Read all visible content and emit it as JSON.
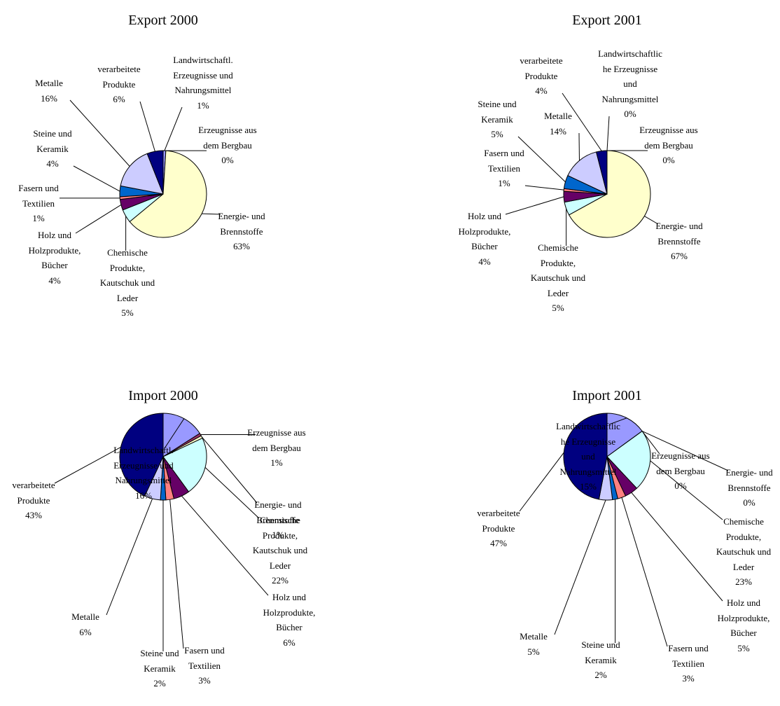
{
  "chart_data": [
    {
      "type": "pie",
      "title": "Export 2000",
      "categories": [
        "Landwirtschaftl. Erzeugnisse und Nahrungsmittel",
        "Erzeugnisse aus dem Bergbau",
        "Energie- und Brennstoffe",
        "Chemische Produkte, Kautschuk und Leder",
        "Holz und Holzprodukte, Bücher",
        "Fasern und Textilien",
        "Steine und Keramik",
        "Metalle",
        "verarbeitete Produkte"
      ],
      "values": [
        1,
        0,
        63,
        5,
        4,
        1,
        4,
        16,
        6
      ],
      "value_labels": [
        "1%",
        "0%",
        "63%",
        "5%",
        "4%",
        "1%",
        "4%",
        "16%",
        "6%"
      ],
      "colors": [
        "#9999FF",
        "#993366",
        "#FFFFCC",
        "#CCFFFF",
        "#660066",
        "#FF8080",
        "#0066CC",
        "#CCCCFF",
        "#000080"
      ]
    },
    {
      "type": "pie",
      "title": "Export 2001",
      "categories": [
        "Landwirtschaftliche Erzeugnisse und Nahrungsmittel",
        "Erzeugnisse aus dem Bergbau",
        "Energie- und Brennstoffe",
        "Chemische Produkte, Kautschuk und Leder",
        "Holz und Holzprodukte, Bücher",
        "Fasern und Textilien",
        "Steine und Keramik",
        "Metalle",
        "verarbeitete Produkte"
      ],
      "values": [
        0,
        0,
        67,
        5,
        4,
        1,
        5,
        14,
        4
      ],
      "value_labels": [
        "0%",
        "0%",
        "67%",
        "5%",
        "4%",
        "1%",
        "5%",
        "14%",
        "4%"
      ],
      "colors": [
        "#9999FF",
        "#993366",
        "#FFFFCC",
        "#CCFFFF",
        "#660066",
        "#FF8080",
        "#0066CC",
        "#CCCCFF",
        "#000080"
      ]
    },
    {
      "type": "pie",
      "title": "Import 2000",
      "categories": [
        "Landwirtschaftl. Erzeugnisse und Nahrungsmittel",
        "Erzeugnisse aus dem Bergbau",
        "Energie- und Brennstoffe",
        "Chemische Produkte, Kautschuk und Leder",
        "Holz und Holzprodukte, Bücher",
        "Fasern und Textilien",
        "Steine und Keramik",
        "Metalle",
        "verarbeitete Produkte"
      ],
      "values": [
        16,
        1,
        1,
        22,
        6,
        3,
        2,
        6,
        43
      ],
      "value_labels": [
        "16%",
        "1%",
        "1%",
        "22%",
        "6%",
        "3%",
        "2%",
        "6%",
        "43%"
      ],
      "colors": [
        "#9999FF",
        "#993366",
        "#FFFFCC",
        "#CCFFFF",
        "#660066",
        "#FF8080",
        "#0066CC",
        "#CCCCFF",
        "#000080"
      ]
    },
    {
      "type": "pie",
      "title": "Import 2001",
      "categories": [
        "Landwirtschaftliche Erzeugnisse und Nahrungsmittel",
        "Erzeugnisse aus dem Bergbau",
        "Energie- und Brennstoffe",
        "Chemische Produkte, Kautschuk und Leder",
        "Holz und Holzprodukte, Bücher",
        "Fasern und Textilien",
        "Steine und Keramik",
        "Metalle",
        "verarbeitete Produkte"
      ],
      "values": [
        15,
        0,
        0,
        23,
        5,
        3,
        2,
        5,
        47
      ],
      "value_labels": [
        "15%",
        "0%",
        "0%",
        "23%",
        "5%",
        "3%",
        "2%",
        "5%",
        "47%"
      ],
      "colors": [
        "#9999FF",
        "#993366",
        "#FFFFCC",
        "#CCFFFF",
        "#660066",
        "#FF8080",
        "#0066CC",
        "#CCCCFF",
        "#000080"
      ]
    }
  ]
}
